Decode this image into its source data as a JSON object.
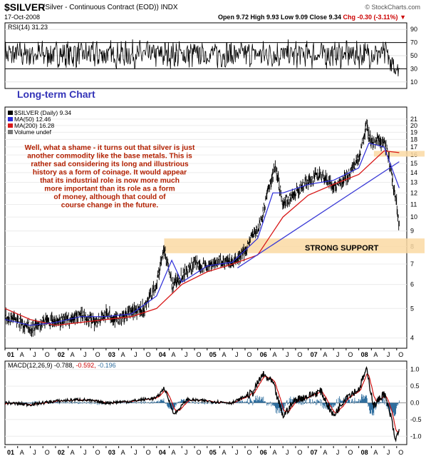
{
  "header": {
    "symbol": "$SILVER",
    "description": "(Silver - Continuous Contract (EOD)) INDX",
    "brand": "© StockCharts.com",
    "date": "17-Oct-2008",
    "quote_prefix": "Open 9.72 High 9.93 Low 9.09 Close 9.34",
    "quote_chg": "Chg -0.30 (-3.11%)",
    "chg_arrow": "▼"
  },
  "colors": {
    "price": "#000000",
    "ma50": "#2b2bd9",
    "ma200": "#d81818",
    "rsi": "#000000",
    "macd": "#000000",
    "signal": "#cc0000",
    "histogram": "#2f6e9e",
    "support_band": "#fad9a3",
    "trendline": "#3b3bd6",
    "annotation_text": "#b22000",
    "long_term_label": "#3434b8"
  },
  "chart_data": [
    {
      "type": "line",
      "panel": "RSI",
      "legend": "RSI(14) 31.23",
      "y_ticks": [
        10,
        30,
        50,
        70,
        90
      ],
      "ylim": [
        0,
        100
      ],
      "reference_lines": [
        30,
        70
      ],
      "last_value": 31.23,
      "label": "Long-term Chart"
    },
    {
      "type": "line",
      "panel": "price",
      "scale": "log",
      "legend": [
        "$SILVER (Daily) 9.34",
        "MA(50) 12.46",
        "MA(200) 16.28",
        "Volume undef"
      ],
      "y_ticks": [
        4,
        5,
        6,
        7,
        8,
        9,
        10,
        11,
        12,
        13,
        14,
        15,
        16,
        17,
        18,
        19,
        20,
        21
      ],
      "ylim": [
        3.7,
        23
      ],
      "series": [
        {
          "name": "$SILVER (Daily)",
          "x": [
            2001.0,
            2001.25,
            2001.5,
            2001.75,
            2002.0,
            2002.25,
            2002.5,
            2002.75,
            2003.0,
            2003.25,
            2003.5,
            2003.75,
            2004.0,
            2004.15,
            2004.3,
            2004.45,
            2004.6,
            2004.75,
            2005.0,
            2005.25,
            2005.5,
            2005.75,
            2005.9,
            2006.0,
            2006.1,
            2006.25,
            2006.35,
            2006.5,
            2006.75,
            2007.0,
            2007.25,
            2007.5,
            2007.75,
            2008.0,
            2008.15,
            2008.25,
            2008.4,
            2008.55,
            2008.65,
            2008.75,
            2008.8
          ],
          "values": [
            4.7,
            4.6,
            4.3,
            4.5,
            4.55,
            4.6,
            4.8,
            4.5,
            4.8,
            4.6,
            4.9,
            5.0,
            6.0,
            7.8,
            6.0,
            6.3,
            6.7,
            7.0,
            6.9,
            7.2,
            7.0,
            7.7,
            8.8,
            9.0,
            10.2,
            13.0,
            14.5,
            11.0,
            12.0,
            13.2,
            13.8,
            12.6,
            13.5,
            15.5,
            20.0,
            17.5,
            18.0,
            17.0,
            13.5,
            11.0,
            9.34
          ]
        },
        {
          "name": "MA(50)",
          "x": [
            2001.0,
            2001.5,
            2002.0,
            2002.5,
            2003.0,
            2003.5,
            2004.0,
            2004.3,
            2004.5,
            2005.0,
            2005.5,
            2006.0,
            2006.3,
            2006.5,
            2007.0,
            2007.5,
            2008.0,
            2008.2,
            2008.5,
            2008.8
          ],
          "values": [
            4.6,
            4.4,
            4.5,
            4.7,
            4.7,
            4.8,
            5.5,
            7.2,
            6.1,
            6.9,
            7.1,
            8.5,
            12.0,
            12.0,
            12.8,
            13.2,
            14.5,
            17.5,
            17.0,
            12.46
          ]
        },
        {
          "name": "MA(200)",
          "x": [
            2001.0,
            2001.5,
            2002.0,
            2002.5,
            2003.0,
            2003.5,
            2004.0,
            2004.5,
            2005.0,
            2005.5,
            2006.0,
            2006.5,
            2007.0,
            2007.5,
            2008.0,
            2008.5,
            2008.8
          ],
          "values": [
            5.0,
            4.6,
            4.4,
            4.5,
            4.6,
            4.7,
            5.0,
            6.0,
            6.6,
            7.0,
            7.5,
            10.0,
            11.8,
            12.8,
            13.8,
            16.5,
            16.28
          ]
        }
      ],
      "annotations": [
        "Well, what a shame - it turns out that silver is just",
        "another commodity like the base metals. This is",
        "rather sad considering its long and illustrious",
        "history as a form of coinage. It would appear",
        "that its industrial role is now more much",
        "more important than its role as a form",
        "of money, although that could of",
        "course change in the future."
      ],
      "support_label": "STRONG SUPPORT",
      "support_range": [
        7.6,
        8.5
      ],
      "resistance_range": [
        15.8,
        16.5
      ],
      "trendline": {
        "x": [
          2005.6,
          2008.8
        ],
        "values": [
          6.8,
          15.2
        ]
      }
    },
    {
      "type": "line",
      "panel": "MACD",
      "legend_prefix": "MACD(12,26,9)",
      "legend_macd": "-0.788,",
      "legend_signal": "-0.592,",
      "legend_hist": "-0.196",
      "y_ticks": [
        1.0,
        0.5,
        0.0,
        -0.5,
        -1.0
      ],
      "ylim": [
        -1.25,
        1.25
      ],
      "series": [
        {
          "name": "MACD",
          "x": [
            2001.0,
            2001.5,
            2002.0,
            2002.5,
            2003.0,
            2003.5,
            2004.0,
            2004.15,
            2004.35,
            2004.6,
            2005.0,
            2005.5,
            2005.9,
            2006.1,
            2006.3,
            2006.5,
            2006.75,
            2007.0,
            2007.25,
            2007.5,
            2007.75,
            2008.0,
            2008.15,
            2008.3,
            2008.5,
            2008.65,
            2008.72,
            2008.8
          ],
          "values": [
            0.0,
            -0.05,
            0.05,
            0.1,
            0.0,
            0.05,
            0.15,
            0.45,
            -0.35,
            0.1,
            0.05,
            0.0,
            0.3,
            0.85,
            0.6,
            -0.4,
            0.1,
            0.2,
            0.35,
            -0.4,
            0.2,
            0.4,
            1.0,
            -0.1,
            0.3,
            -0.5,
            -1.15,
            -0.788
          ]
        }
      ]
    }
  ],
  "x_axis_labels": [
    "01",
    "A",
    "J",
    "O",
    "02",
    "A",
    "J",
    "O",
    "03",
    "A",
    "J",
    "O",
    "04",
    "A",
    "J",
    "O",
    "05",
    "A",
    "J",
    "O",
    "06",
    "A",
    "J",
    "O",
    "07",
    "A",
    "J",
    "O",
    "08",
    "A",
    "J",
    "O"
  ],
  "x_axis_bold": [
    "01",
    "02",
    "03",
    "04",
    "05",
    "06",
    "07",
    "08"
  ]
}
